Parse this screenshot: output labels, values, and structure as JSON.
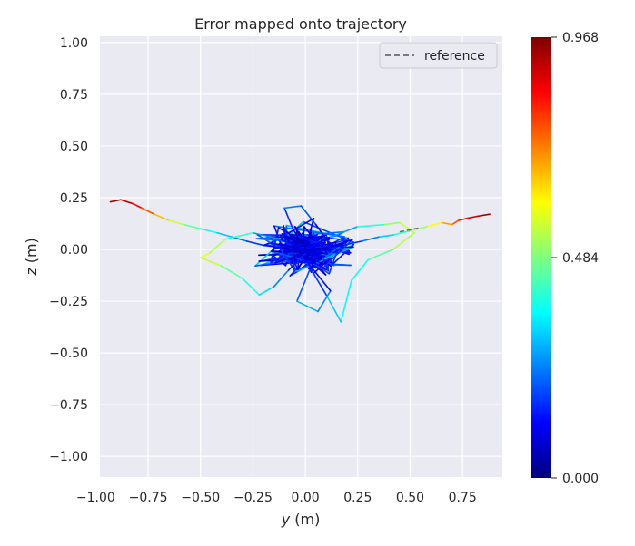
{
  "chart_data": {
    "type": "line",
    "title": "Error mapped onto trajectory",
    "xlabel_var": "y",
    "xlabel_unit": " (m)",
    "ylabel_var": "z",
    "ylabel_unit": " (m)",
    "xlim": [
      -0.98,
      0.94
    ],
    "ylim": [
      -1.1,
      1.03
    ],
    "xticks": [
      -1.0,
      -0.75,
      -0.5,
      -0.25,
      0.0,
      0.25,
      0.5,
      0.75
    ],
    "xtick_labels": [
      "−1.00",
      "−0.75",
      "−0.50",
      "−0.25",
      "0.00",
      "0.25",
      "0.50",
      "0.75"
    ],
    "yticks": [
      1.0,
      0.75,
      0.5,
      0.25,
      0.0,
      -0.25,
      -0.5,
      -0.75,
      -1.0
    ],
    "ytick_labels": [
      "1.00",
      "0.75",
      "0.50",
      "0.25",
      "0.00",
      "−0.25",
      "−0.50",
      "−0.75",
      "−1.00"
    ],
    "grid": true,
    "legend": {
      "position": "top-right",
      "entries": [
        {
          "label": "reference",
          "style": "dashed",
          "color": "#6b6b6b"
        }
      ]
    },
    "colorbar": {
      "colormap": "jet",
      "min": 0.0,
      "max": 0.968,
      "tick_labels": [
        "0.968",
        "0.484",
        "0.000"
      ],
      "tick_values": [
        0.968,
        0.484,
        0.0
      ]
    },
    "reference_line": {
      "x": [
        0.45,
        0.55
      ],
      "y": [
        0.085,
        0.105
      ]
    },
    "series": [
      {
        "x": [
          -0.93,
          -0.88,
          -0.82,
          -0.78,
          -0.72,
          -0.65,
          -0.58,
          -0.5,
          -0.42,
          -0.35,
          -0.28,
          -0.2,
          -0.12,
          -0.05,
          0.0
        ],
        "y": [
          0.23,
          0.24,
          0.22,
          0.2,
          0.17,
          0.14,
          0.12,
          0.1,
          0.08,
          0.06,
          0.04,
          0.02,
          0.01,
          0.0,
          0.0
        ],
        "error": [
          0.95,
          0.93,
          0.88,
          0.82,
          0.72,
          0.62,
          0.5,
          0.42,
          0.34,
          0.27,
          0.2,
          0.14,
          0.09,
          0.05,
          0.02
        ]
      },
      {
        "x": [
          0.88,
          0.82,
          0.77,
          0.73,
          0.7,
          0.65,
          0.58,
          0.5,
          0.42,
          0.35,
          0.27,
          0.18,
          0.1,
          0.03,
          0.0
        ],
        "y": [
          0.17,
          0.16,
          0.15,
          0.14,
          0.12,
          0.13,
          0.11,
          0.09,
          0.07,
          0.06,
          0.04,
          0.02,
          0.01,
          0.0,
          0.0
        ],
        "error": [
          0.96,
          0.92,
          0.86,
          0.8,
          0.74,
          0.66,
          0.55,
          0.46,
          0.36,
          0.28,
          0.2,
          0.13,
          0.08,
          0.04,
          0.02
        ]
      },
      {
        "x": [
          0.0,
          -0.12,
          -0.25,
          -0.38,
          -0.46,
          -0.5,
          -0.4,
          -0.3,
          -0.22,
          -0.15,
          -0.08,
          0.0
        ],
        "y": [
          0.0,
          0.05,
          0.08,
          0.05,
          -0.02,
          -0.04,
          -0.08,
          -0.14,
          -0.22,
          -0.18,
          -0.1,
          -0.02
        ],
        "error": [
          0.05,
          0.18,
          0.35,
          0.48,
          0.58,
          0.6,
          0.5,
          0.42,
          0.36,
          0.3,
          0.2,
          0.1
        ]
      },
      {
        "x": [
          0.0,
          0.12,
          0.25,
          0.38,
          0.45,
          0.52,
          0.42,
          0.3,
          0.22,
          0.17,
          0.1,
          0.0
        ],
        "y": [
          0.0,
          0.06,
          0.11,
          0.12,
          0.13,
          0.08,
          0.0,
          -0.05,
          -0.15,
          -0.35,
          -0.22,
          -0.05
        ],
        "error": [
          0.05,
          0.2,
          0.35,
          0.45,
          0.55,
          0.56,
          0.5,
          0.4,
          0.36,
          0.38,
          0.25,
          0.1
        ]
      },
      {
        "x": [
          0.0,
          -0.06,
          -0.1,
          -0.02,
          0.05,
          0.1,
          0.02,
          -0.04,
          0.06,
          0.12,
          0.0,
          -0.08,
          0.04,
          0.0
        ],
        "y": [
          0.0,
          0.1,
          0.2,
          0.21,
          0.12,
          0.05,
          -0.1,
          -0.25,
          -0.3,
          -0.2,
          -0.05,
          0.08,
          0.15,
          0.0
        ],
        "error": [
          0.02,
          0.1,
          0.22,
          0.25,
          0.15,
          0.08,
          0.12,
          0.28,
          0.3,
          0.2,
          0.06,
          0.1,
          0.16,
          0.02
        ]
      }
    ],
    "noise_cloud": {
      "count": 260,
      "x_spread": 0.18,
      "y_spread": 0.1,
      "error_range": [
        0.02,
        0.38
      ]
    }
  }
}
